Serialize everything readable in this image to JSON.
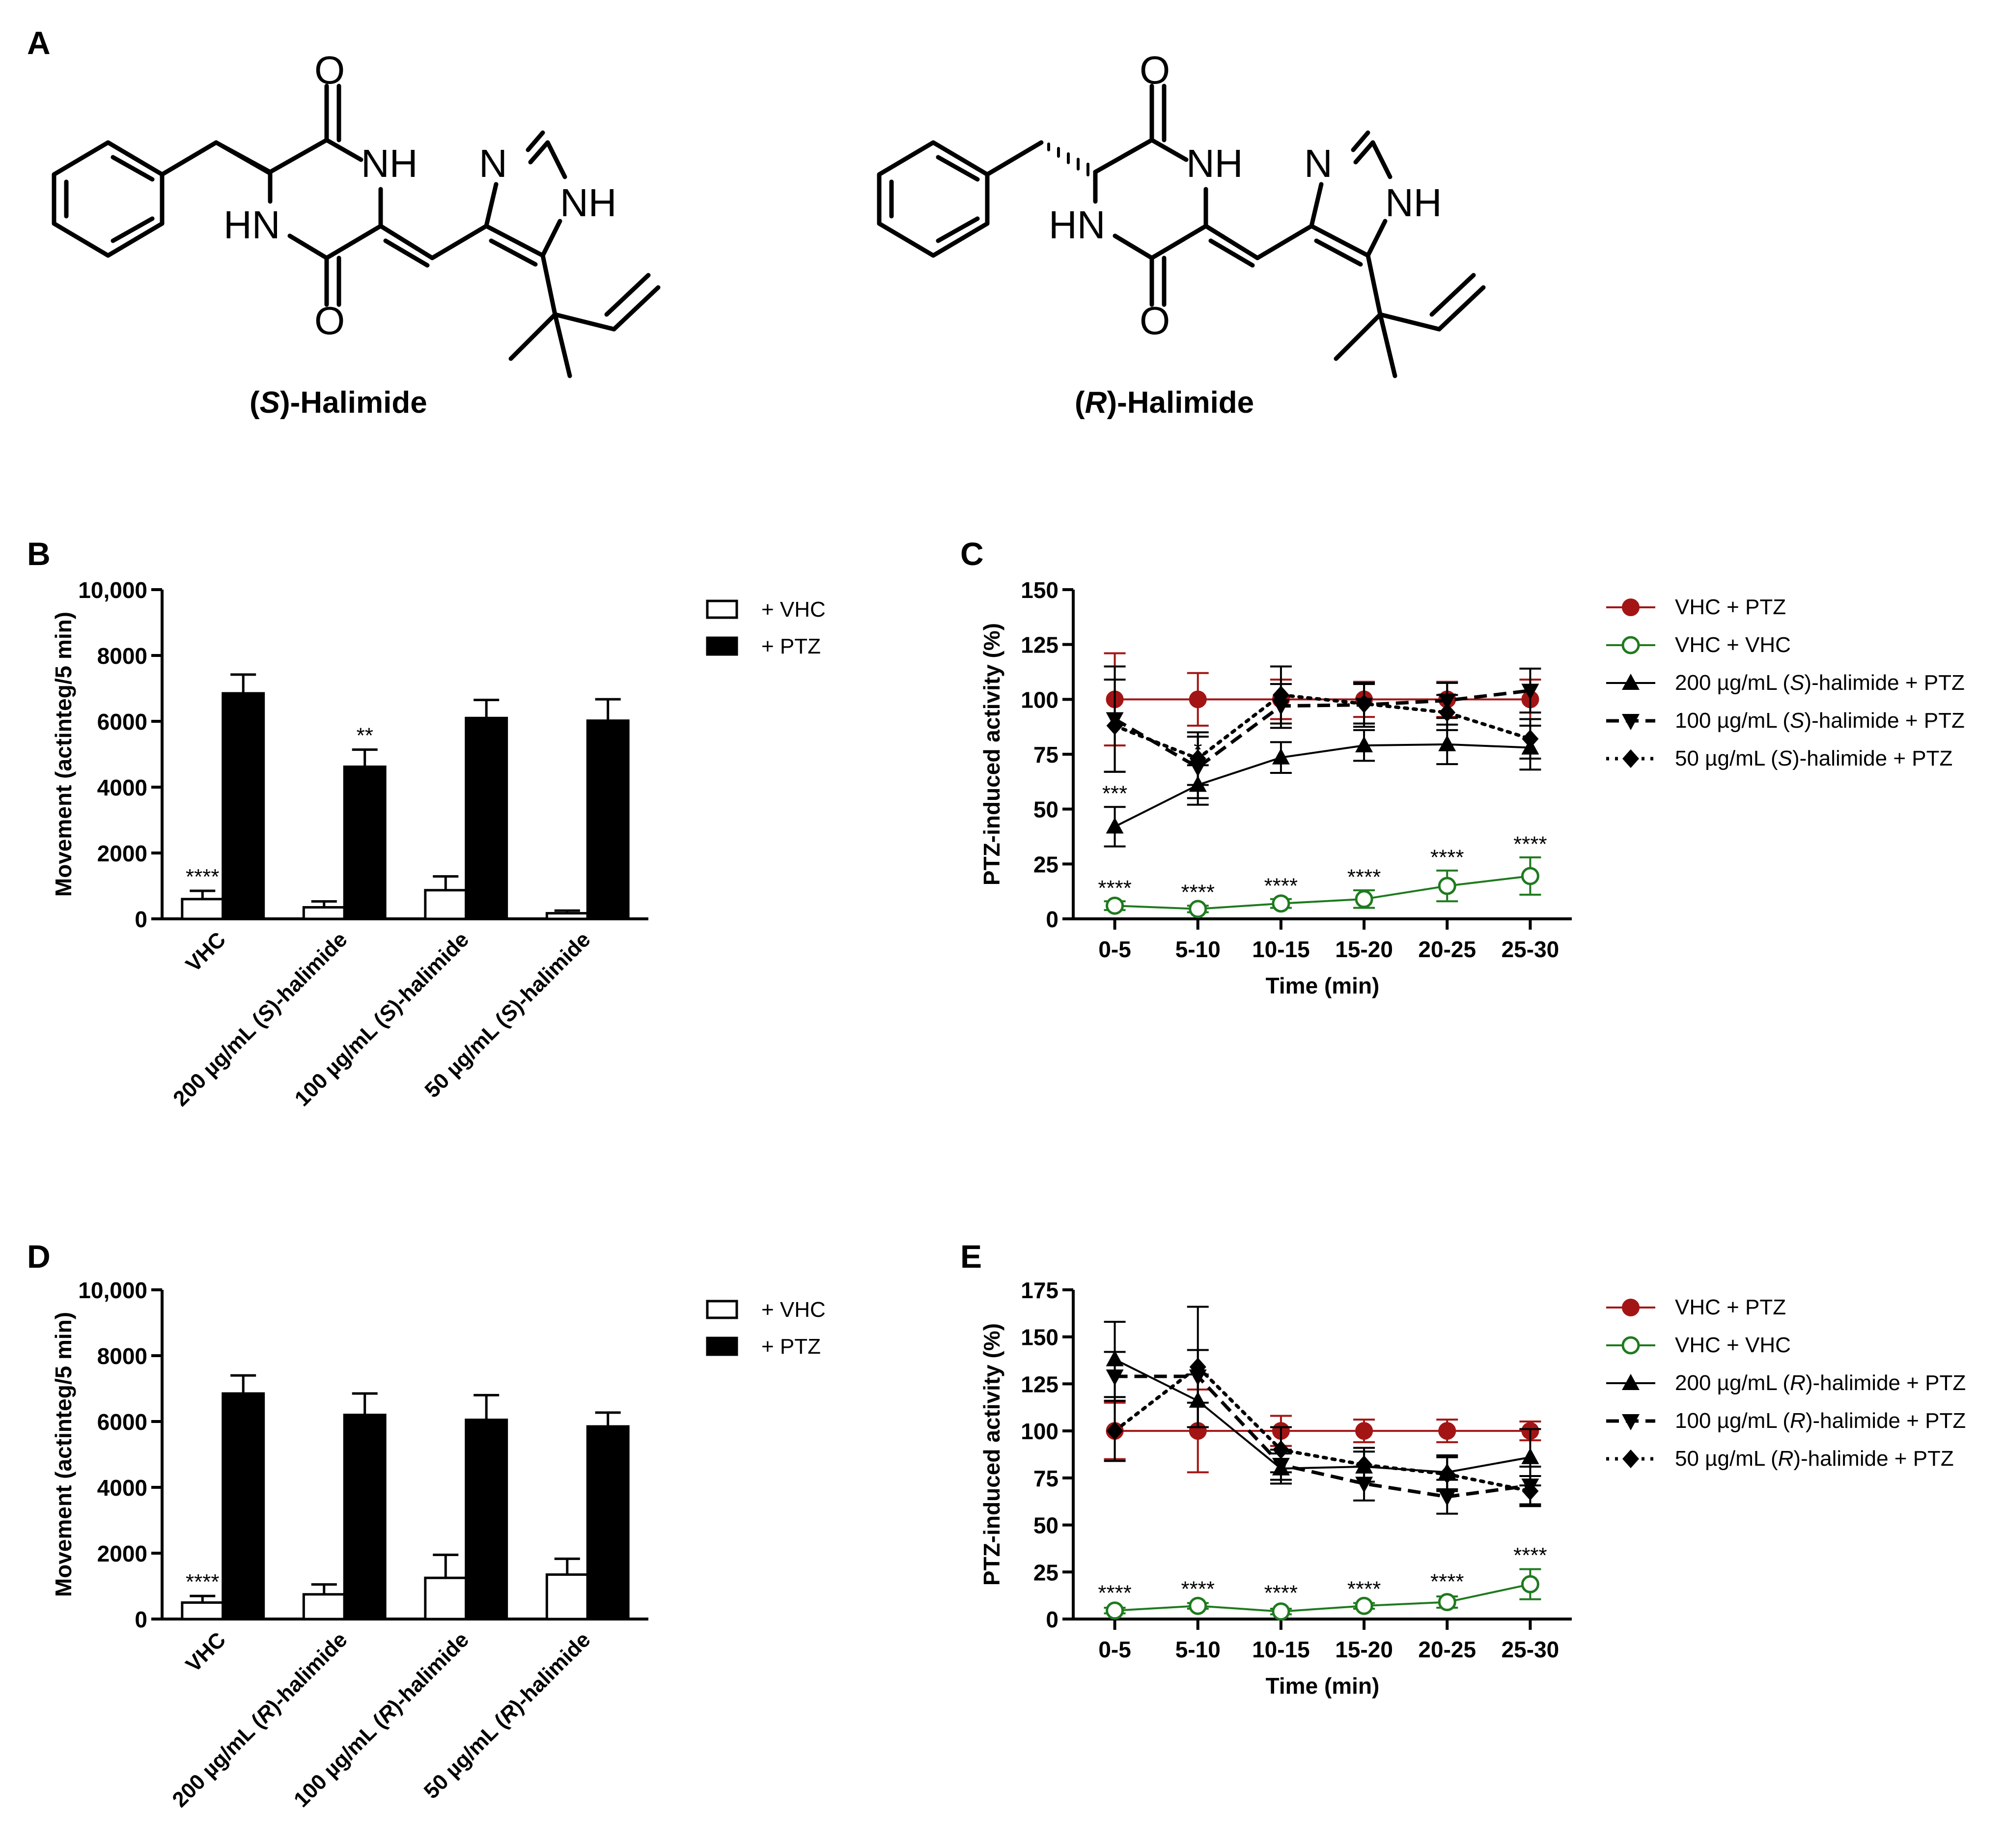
{
  "panel_labels": [
    "A",
    "B",
    "C",
    "D",
    "E"
  ],
  "structures": {
    "s": {
      "atoms": {
        "o1": "O",
        "nh1": "NH",
        "hn": "HN",
        "o2": "O",
        "n": "N",
        "nh2": "NH"
      },
      "name_open": "(",
      "name_italic": "S",
      "name_close": ")-Halimide"
    },
    "r": {
      "atoms": {
        "o1": "O",
        "nh1": "NH",
        "hn": "HN",
        "o2": "O",
        "n": "N",
        "nh2": "NH"
      },
      "name_open": "(",
      "name_italic": "R",
      "name_close": ")-Halimide"
    }
  },
  "chart_data": [
    {
      "panel": "B",
      "type": "bar",
      "ylabel": "Movement (actinteg/5 min)",
      "ylim": [
        0,
        10000
      ],
      "yticks": [
        "0",
        "2000",
        "4000",
        "6000",
        "8000",
        "10,000"
      ],
      "categories": [
        "VHC",
        "200 µg/mL (S)-halimide",
        "100 µg/mL (S)-halimide",
        "50 µg/mL (S)-halimide"
      ],
      "series": [
        {
          "name": "+ VHC",
          "color": "#ffffff",
          "values": [
            600,
            350,
            870,
            170
          ],
          "errors": [
            250,
            180,
            420,
            80
          ]
        },
        {
          "name": "+ PTZ",
          "color": "#000000",
          "values": [
            6850,
            4620,
            6100,
            6020
          ],
          "errors": [
            570,
            520,
            550,
            650
          ]
        }
      ],
      "annotations": [
        {
          "series": 0,
          "index": 0,
          "text": "****"
        },
        {
          "series": 1,
          "index": 1,
          "text": "**"
        }
      ],
      "legend": "top-right"
    },
    {
      "panel": "C",
      "type": "line",
      "ylabel": "PTZ-induced activity (%)",
      "xlabel": "Time (min)",
      "ylim": [
        0,
        150
      ],
      "yticks": [
        "0",
        "25",
        "50",
        "75",
        "100",
        "125",
        "150"
      ],
      "categories": [
        "0-5",
        "5-10",
        "10-15",
        "15-20",
        "20-25",
        "25-30"
      ],
      "series": [
        {
          "name": "VHC + PTZ",
          "color": "#a31515",
          "style": "solid",
          "marker": "circle-filled",
          "values": [
            100,
            100,
            100,
            100,
            100,
            100
          ],
          "errors": [
            21,
            12,
            9,
            8,
            8,
            9
          ]
        },
        {
          "name": "VHC + VHC",
          "color": "#1e7a1e",
          "style": "solid",
          "marker": "circle-open",
          "values": [
            6,
            4.5,
            7,
            9,
            15,
            19.5
          ],
          "errors": [
            2,
            1.5,
            2,
            4,
            7,
            8.5
          ]
        },
        {
          "name": "200 µg/mL (S)-halimide + PTZ",
          "color": "#000000",
          "style": "solid",
          "marker": "triangle-up",
          "values": [
            42,
            61,
            73.5,
            79,
            79.5,
            78
          ],
          "errors": [
            9,
            9,
            7,
            7,
            9,
            10
          ]
        },
        {
          "name": "100 µg/mL (S)-halimide + PTZ",
          "color": "#000000",
          "style": "dashed",
          "marker": "triangle-down",
          "values": [
            91,
            69,
            97,
            97.5,
            99.5,
            104
          ],
          "errors": [
            24,
            14,
            10,
            10,
            8,
            10
          ]
        },
        {
          "name": "50 µg/mL (S)-halimide + PTZ",
          "color": "#000000",
          "style": "dotted",
          "marker": "diamond",
          "values": [
            88,
            73,
            102,
            98,
            94,
            82
          ],
          "errors": [
            21,
            12,
            13,
            9,
            8,
            9
          ]
        }
      ],
      "annotations": [
        {
          "index": 0,
          "value": 52,
          "text": "***"
        },
        {
          "index": 1,
          "value": 72,
          "text": "*"
        },
        {
          "index": 0,
          "value": 9,
          "text": "****"
        },
        {
          "index": 1,
          "value": 7,
          "text": "****"
        },
        {
          "index": 2,
          "value": 10,
          "text": "****"
        },
        {
          "index": 3,
          "value": 14,
          "text": "****"
        },
        {
          "index": 4,
          "value": 23,
          "text": "****"
        },
        {
          "index": 5,
          "value": 29,
          "text": "****"
        }
      ],
      "legend": "right"
    },
    {
      "panel": "D",
      "type": "bar",
      "ylabel": "Movement (actinteg/5 min)",
      "ylim": [
        0,
        10000
      ],
      "yticks": [
        "0",
        "2000",
        "4000",
        "6000",
        "8000",
        "10,000"
      ],
      "categories": [
        "VHC",
        "200 µg/mL (R)-halimide",
        "100 µg/mL (R)-halimide",
        "50 µg/mL (R)-halimide"
      ],
      "series": [
        {
          "name": "+ VHC",
          "color": "#ffffff",
          "values": [
            500,
            750,
            1250,
            1350
          ],
          "errors": [
            200,
            300,
            700,
            480
          ]
        },
        {
          "name": "+ PTZ",
          "color": "#000000",
          "values": [
            6850,
            6200,
            6050,
            5850
          ],
          "errors": [
            550,
            650,
            750,
            420
          ]
        }
      ],
      "annotations": [
        {
          "series": 0,
          "index": 0,
          "text": "****"
        }
      ],
      "legend": "top-right"
    },
    {
      "panel": "E",
      "type": "line",
      "ylabel": "PTZ-induced activity (%)",
      "xlabel": "Time (min)",
      "ylim": [
        0,
        175
      ],
      "yticks": [
        "0",
        "25",
        "50",
        "75",
        "100",
        "125",
        "150",
        "175"
      ],
      "categories": [
        "0-5",
        "5-10",
        "10-15",
        "15-20",
        "20-25",
        "25-30"
      ],
      "series": [
        {
          "name": "VHC + PTZ",
          "color": "#a31515",
          "style": "solid",
          "marker": "circle-filled",
          "values": [
            100,
            100,
            100,
            100,
            100,
            100
          ],
          "errors": [
            15,
            22,
            8,
            6,
            6,
            5
          ]
        },
        {
          "name": "VHC + VHC",
          "color": "#1e7a1e",
          "style": "solid",
          "marker": "circle-open",
          "values": [
            4.5,
            7,
            4,
            7,
            9,
            18.5
          ],
          "errors": [
            1.5,
            1.5,
            1.5,
            1.5,
            3,
            8
          ]
        },
        {
          "name": "200 µg/mL (R)-halimide + PTZ",
          "color": "#000000",
          "style": "solid",
          "marker": "triangle-up",
          "values": [
            138,
            116,
            80,
            81,
            78,
            86
          ],
          "errors": [
            20,
            14,
            8,
            8,
            9,
            15
          ]
        },
        {
          "name": "100 µg/mL (R)-halimide + PTZ",
          "color": "#000000",
          "style": "dashed",
          "marker": "triangle-down",
          "values": [
            129,
            129,
            82,
            72,
            65,
            71
          ],
          "errors": [
            13,
            14,
            8,
            9,
            9,
            10
          ]
        },
        {
          "name": "50 µg/mL (R)-halimide + PTZ",
          "color": "#000000",
          "style": "dotted",
          "marker": "diamond",
          "values": [
            100,
            134,
            90,
            82,
            77,
            68
          ],
          "errors": [
            16,
            32,
            12,
            9,
            9,
            8
          ]
        }
      ],
      "annotations": [
        {
          "index": 0,
          "value": 8,
          "text": "****"
        },
        {
          "index": 1,
          "value": 10,
          "text": "****"
        },
        {
          "index": 2,
          "value": 8,
          "text": "****"
        },
        {
          "index": 3,
          "value": 10,
          "text": "****"
        },
        {
          "index": 4,
          "value": 14,
          "text": "****"
        },
        {
          "index": 5,
          "value": 28,
          "text": "****"
        }
      ],
      "legend": "right"
    }
  ]
}
